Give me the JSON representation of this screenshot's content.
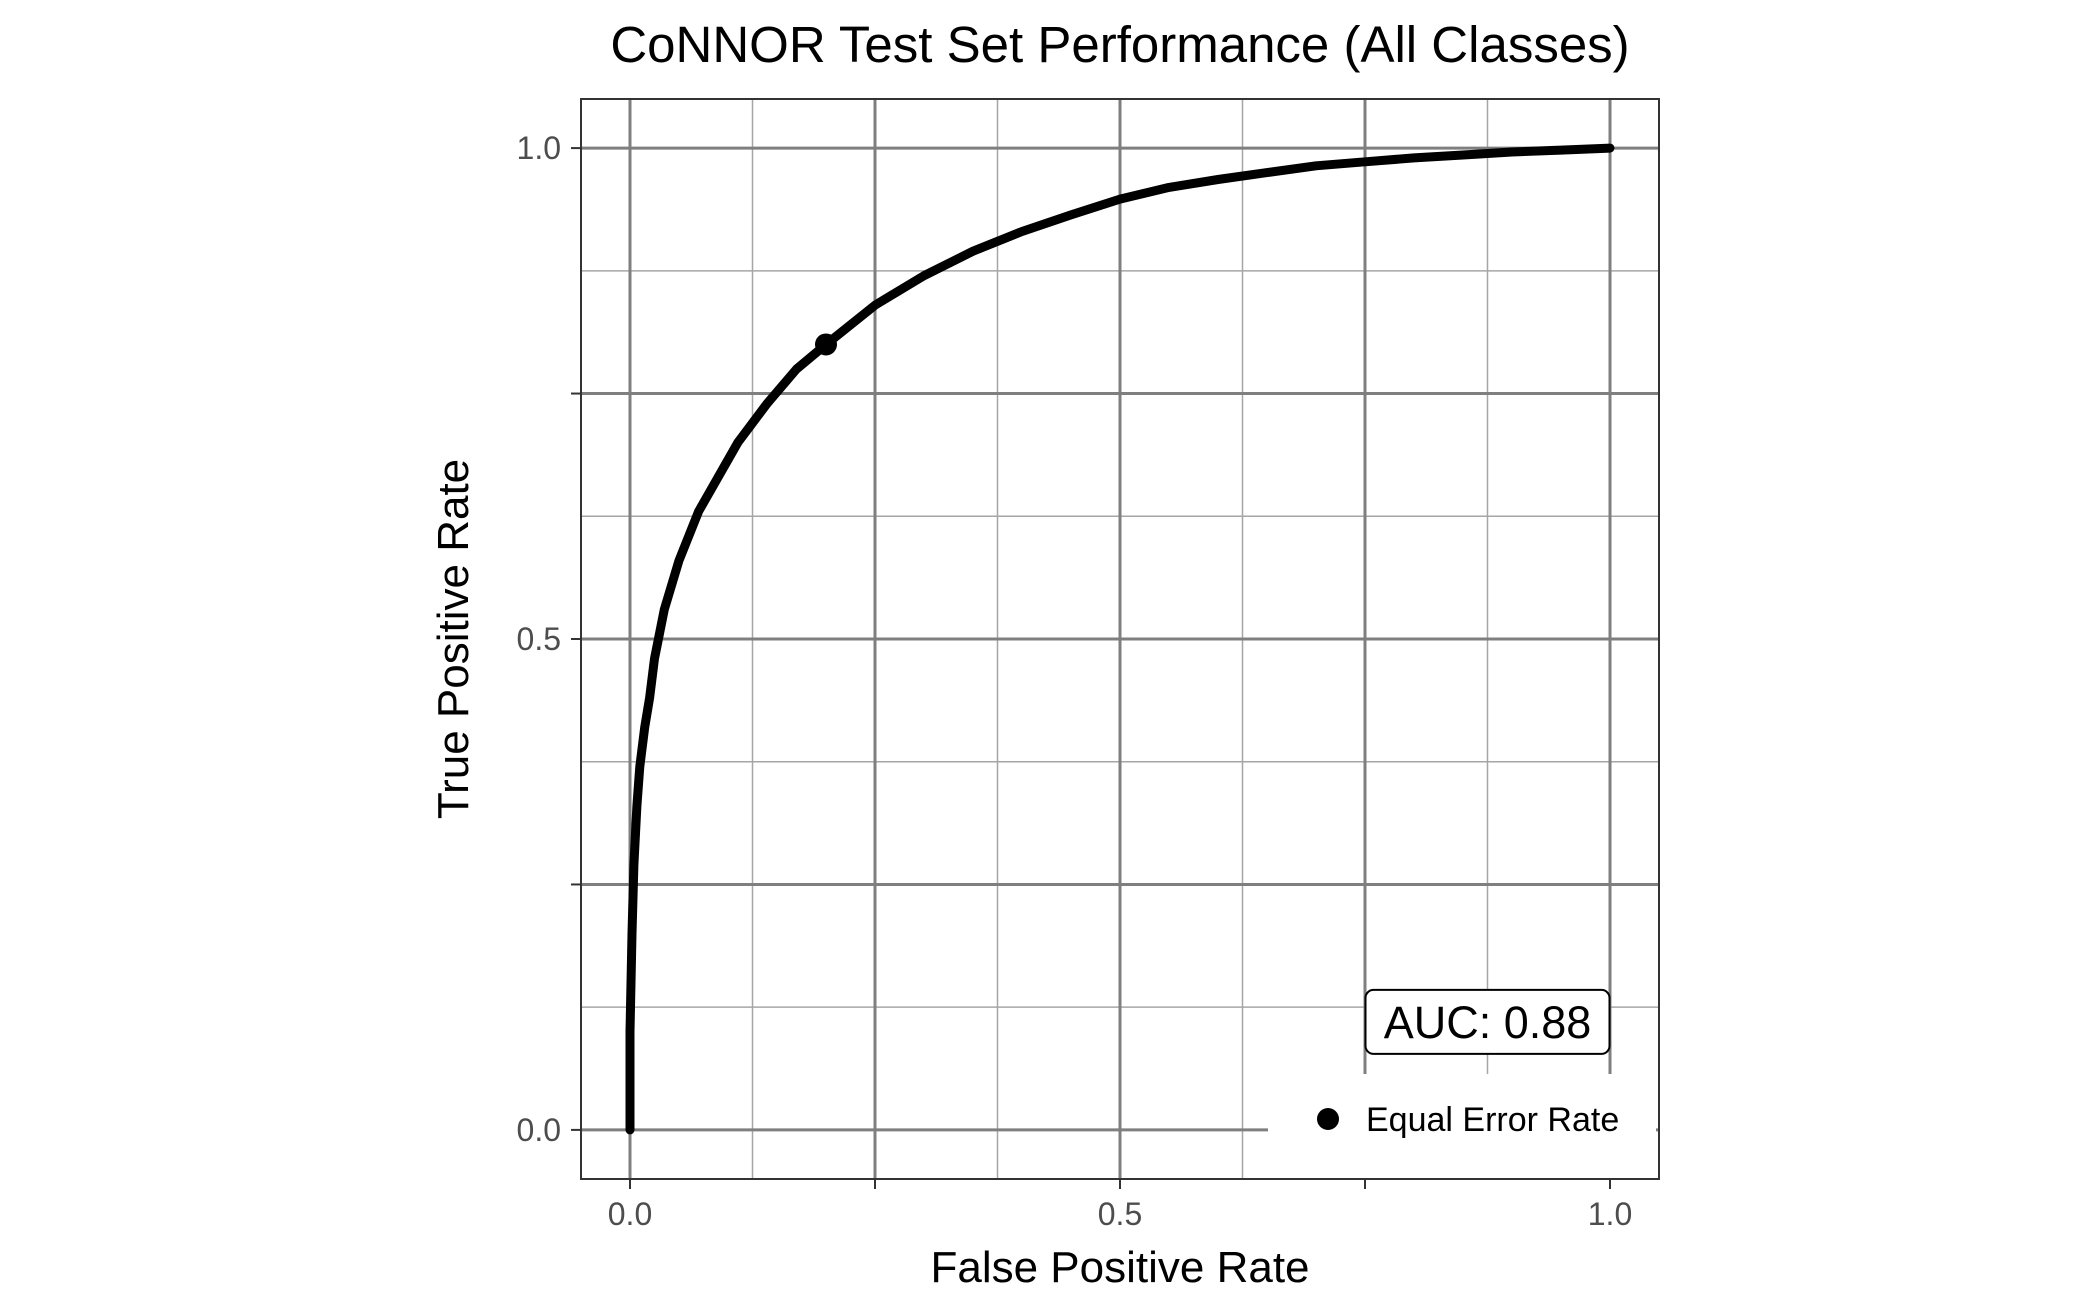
{
  "chart_data": {
    "type": "line",
    "title": "CoNNOR Test Set Performance (All Classes)",
    "xlabel": "False Positive Rate",
    "ylabel": "True Positive Rate",
    "xlim": [
      -0.05,
      1.05
    ],
    "ylim": [
      -0.05,
      1.05
    ],
    "x_ticks": [
      {
        "value": 0,
        "label": "0.0"
      },
      {
        "value": 0.5,
        "label": "0.5"
      },
      {
        "value": 1,
        "label": "1.0"
      }
    ],
    "y_ticks": [
      {
        "value": 0,
        "label": "0.0"
      },
      {
        "value": 0.5,
        "label": "0.5"
      },
      {
        "value": 1,
        "label": "1.0"
      }
    ],
    "grid": true,
    "series": [
      {
        "color": "#000000",
        "x": [
          0.0,
          0.0,
          0.002,
          0.004,
          0.007,
          0.01,
          0.015,
          0.02,
          0.025,
          0.035,
          0.05,
          0.07,
          0.09,
          0.11,
          0.14,
          0.17,
          0.2,
          0.25,
          0.3,
          0.35,
          0.4,
          0.45,
          0.5,
          0.55,
          0.6,
          0.65,
          0.7,
          0.75,
          0.8,
          0.85,
          0.9,
          0.95,
          1.0
        ],
        "y": [
          0.0,
          0.1,
          0.2,
          0.27,
          0.33,
          0.37,
          0.41,
          0.44,
          0.48,
          0.53,
          0.58,
          0.63,
          0.665,
          0.7,
          0.74,
          0.775,
          0.8,
          0.84,
          0.87,
          0.895,
          0.915,
          0.932,
          0.948,
          0.96,
          0.968,
          0.975,
          0.982,
          0.986,
          0.99,
          0.993,
          0.996,
          0.998,
          1.0
        ]
      }
    ],
    "marker": {
      "label": "Equal Error Rate",
      "x": 0.2,
      "y": 0.8
    },
    "annotation": {
      "text": "AUC: 0.88",
      "position": "bottom-right"
    },
    "legend": {
      "position": "bottom-right",
      "entries": [
        "Equal Error Rate"
      ]
    }
  }
}
